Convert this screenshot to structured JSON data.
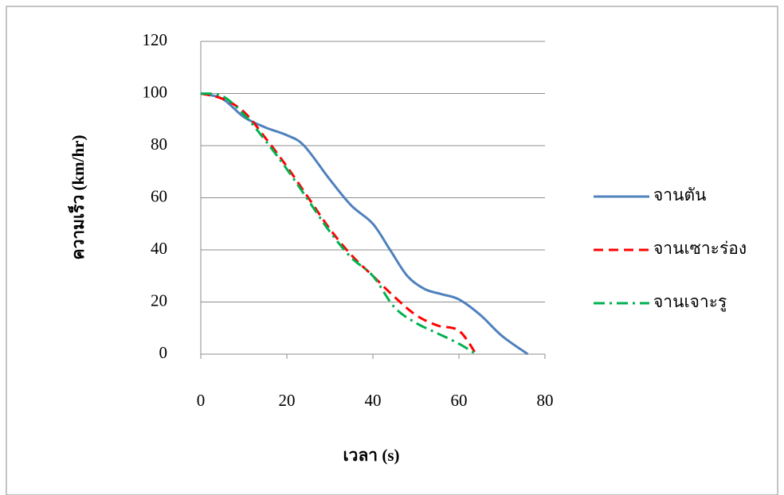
{
  "chart_data": {
    "type": "line",
    "x_label": "เวลา (s)",
    "y_label": "ความเร็ว  (km/hr)",
    "xlim": [
      0,
      80
    ],
    "xticks": [
      0,
      20,
      40,
      60,
      80
    ],
    "ylim": [
      0,
      120
    ],
    "yticks": [
      0,
      20,
      40,
      60,
      80,
      100,
      120
    ],
    "grid": true,
    "legend": "right",
    "series": [
      {
        "name": "จานตัน",
        "color": "#4f81bd",
        "dash": "solid",
        "x": [
          0,
          5,
          10,
          15,
          20,
          24,
          30,
          35,
          40,
          44,
          48,
          52,
          56,
          60,
          65,
          70,
          76
        ],
        "values": [
          100,
          98,
          91,
          87,
          84,
          80,
          67,
          57,
          50,
          40,
          30,
          25,
          23,
          21,
          15,
          7,
          0
        ]
      },
      {
        "name": "จานเซาะร่อง",
        "color": "#ff0000",
        "dash": "dash",
        "x": [
          0,
          5,
          10,
          15,
          20,
          25,
          30,
          35,
          40,
          45,
          50,
          55,
          60,
          64
        ],
        "values": [
          100,
          98,
          93,
          83,
          72,
          60,
          48,
          38,
          30,
          22,
          15,
          11,
          9,
          0
        ]
      },
      {
        "name": "จานเจาะรู",
        "color": "#00b050",
        "dash": "dashdot",
        "x": [
          0,
          5,
          10,
          15,
          20,
          25,
          30,
          35,
          40,
          45,
          50,
          55,
          60,
          64
        ],
        "values": [
          100,
          99,
          92,
          82,
          71,
          59,
          47,
          37,
          30,
          18,
          12,
          8,
          4,
          0
        ]
      }
    ]
  }
}
